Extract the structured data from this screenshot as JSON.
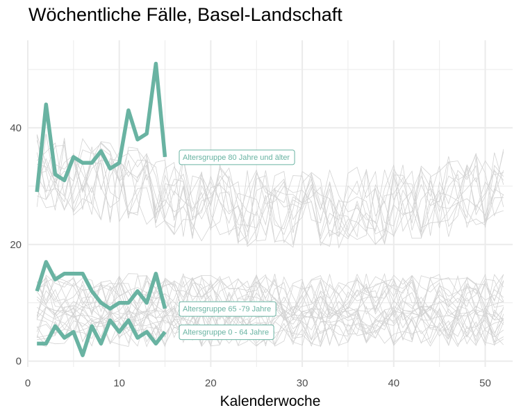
{
  "title": "Wöchentliche Fälle, Basel-Landschaft",
  "chart_data": {
    "type": "line",
    "title": "Wöchentliche Fälle, Basel-Landschaft",
    "xlabel": "Kalenderwoche",
    "ylabel": "",
    "xlim": [
      0,
      53
    ],
    "ylim": [
      -1,
      55
    ],
    "x_ticks": [
      0,
      10,
      20,
      30,
      40,
      50
    ],
    "y_ticks": [
      0,
      20,
      40
    ],
    "grid": true,
    "colors": {
      "highlight": "#69b3a2",
      "background": "#d3d3d3",
      "grid": "#ebebeb"
    },
    "series": [
      {
        "name": "Altersgruppe 80 Jahre und älter",
        "highlight": true,
        "x": [
          1,
          2,
          3,
          4,
          5,
          6,
          7,
          8,
          9,
          10,
          11,
          12,
          13,
          14,
          15
        ],
        "values": [
          29,
          44,
          32,
          31,
          35,
          34,
          34,
          36,
          33,
          34,
          43,
          38,
          39,
          51,
          35
        ]
      },
      {
        "name": "Altersgruppe 65 -79 Jahre",
        "highlight": true,
        "x": [
          1,
          2,
          3,
          4,
          5,
          6,
          7,
          8,
          9,
          10,
          11,
          12,
          13,
          14,
          15
        ],
        "values": [
          12,
          17,
          14,
          15,
          15,
          15,
          12,
          10,
          9,
          10,
          10,
          12,
          10,
          15,
          9
        ]
      },
      {
        "name": "Altersgruppe 0 - 64 Jahre",
        "highlight": true,
        "x": [
          1,
          2,
          3,
          4,
          5,
          6,
          7,
          8,
          9,
          10,
          11,
          12,
          13,
          14,
          15
        ],
        "values": [
          3,
          3,
          6,
          4,
          5,
          1,
          6,
          3,
          7,
          5,
          7,
          4,
          5,
          3,
          5
        ]
      }
    ]
  }
}
